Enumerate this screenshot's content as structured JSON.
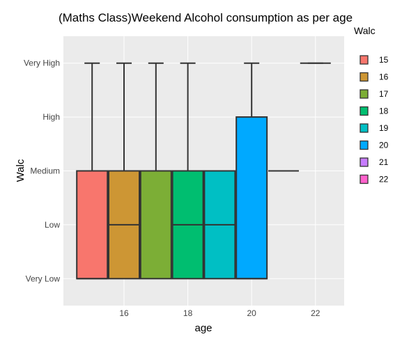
{
  "chart_data": {
    "type": "box",
    "title": "(Maths Class)Weekend Alcohol consumption as per age",
    "xlabel": "age",
    "ylabel": "Walc",
    "xlim": [
      14.1,
      22.9
    ],
    "x_ticks": [
      16,
      18,
      20,
      22
    ],
    "y_categories": [
      "Very Low",
      "Low",
      "Medium",
      "High",
      "Very High"
    ],
    "ylim": [
      0.5,
      5.5
    ],
    "grid": true,
    "legend": {
      "title": "Walc",
      "position": "right",
      "items": [
        "15",
        "16",
        "17",
        "18",
        "19",
        "20",
        "21",
        "22"
      ]
    },
    "series": [
      {
        "name": "15",
        "x": 15,
        "color": "#F8766D",
        "min": 1,
        "q1": 1,
        "median": 1,
        "q3": 3,
        "max": 5
      },
      {
        "name": "16",
        "x": 16,
        "color": "#CD9634",
        "min": 1,
        "q1": 1,
        "median": 2,
        "q3": 3,
        "max": 5
      },
      {
        "name": "17",
        "x": 17,
        "color": "#7CAE36",
        "min": 1,
        "q1": 1,
        "median": 3,
        "q3": 3,
        "max": 5
      },
      {
        "name": "18",
        "x": 18,
        "color": "#00BE70",
        "min": 1,
        "q1": 1,
        "median": 2,
        "q3": 3,
        "max": 5
      },
      {
        "name": "19",
        "x": 19,
        "color": "#00BFC4",
        "min": 1,
        "q1": 1,
        "median": 2,
        "q3": 3,
        "max": 3
      },
      {
        "name": "20",
        "x": 20,
        "color": "#00A9FF",
        "min": 1,
        "q1": 1,
        "median": 1,
        "q3": 4,
        "max": 5
      },
      {
        "name": "21",
        "x": 21,
        "color": "#C77CFF",
        "min": 3,
        "q1": 3,
        "median": 3,
        "q3": 3,
        "max": 3
      },
      {
        "name": "22",
        "x": 22,
        "color": "#FF61CC",
        "min": 5,
        "q1": 5,
        "median": 5,
        "q3": 5,
        "max": 5
      }
    ]
  }
}
